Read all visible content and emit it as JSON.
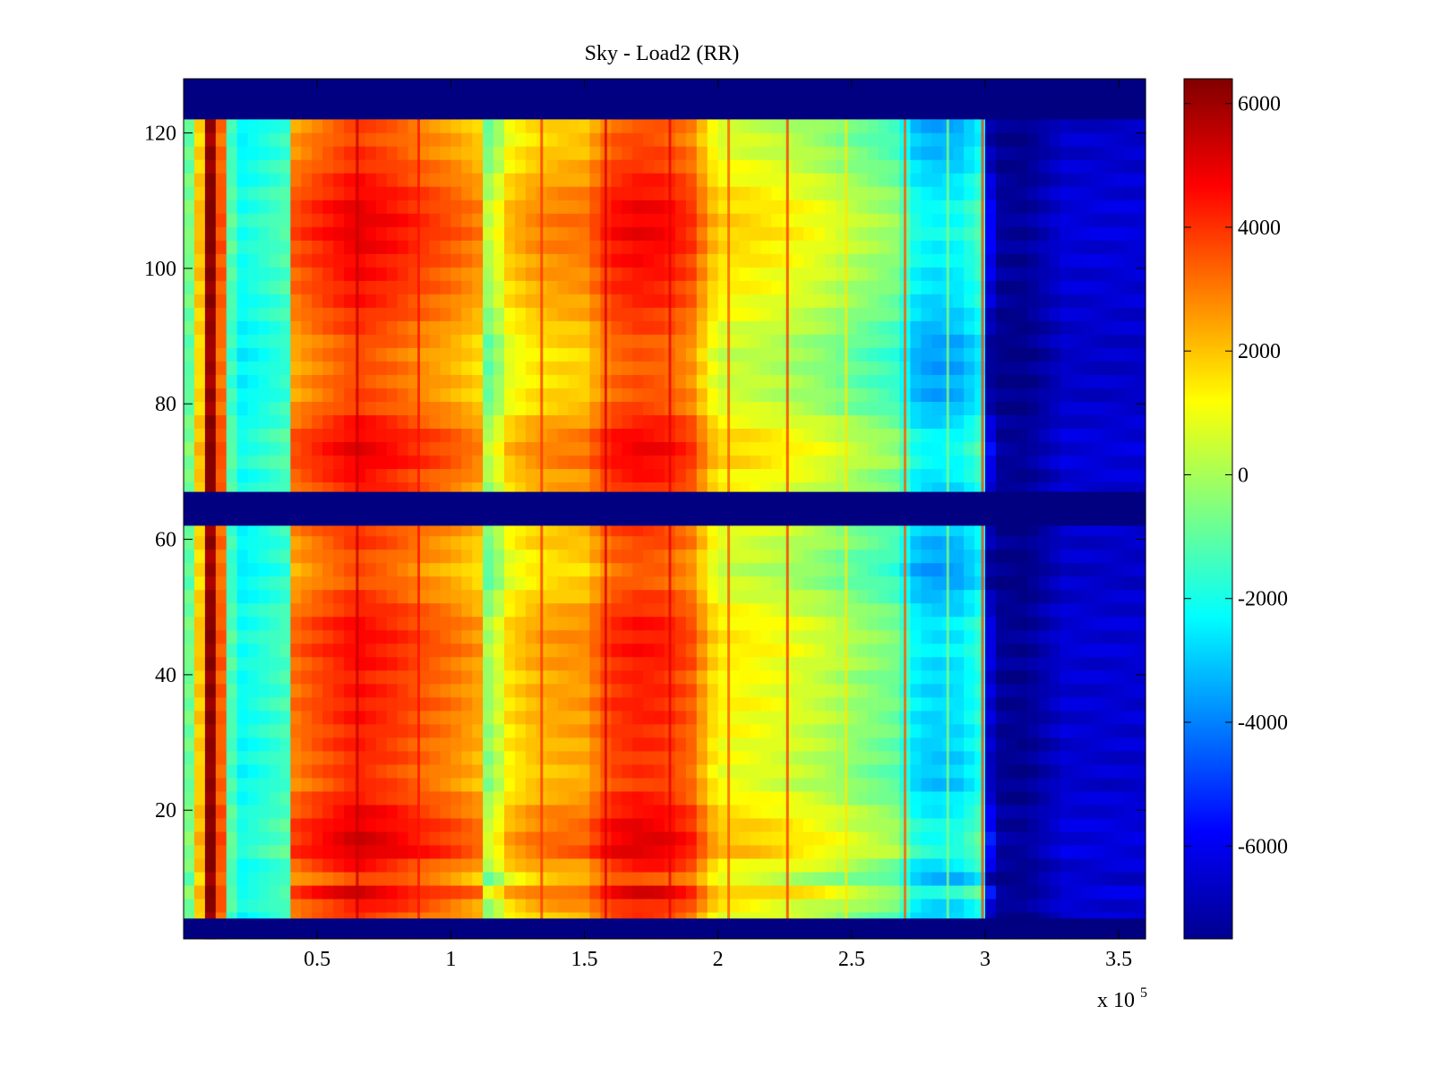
{
  "chart_data": {
    "type": "heatmap",
    "title": "Sky - Load2 (RR)",
    "xlabel": "",
    "ylabel": "",
    "x_exponent_label": "x 10",
    "x_exponent": "5",
    "xlim": [
      0,
      3.6
    ],
    "ylim": [
      1,
      128
    ],
    "xticks": [
      0.5,
      1,
      1.5,
      2,
      2.5,
      3,
      3.5
    ],
    "xtick_labels": [
      "0.5",
      "1",
      "1.5",
      "2",
      "2.5",
      "3",
      "3.5"
    ],
    "yticks": [
      20,
      40,
      60,
      80,
      100,
      120
    ],
    "ytick_labels": [
      "20",
      "40",
      "60",
      "80",
      "100",
      "120"
    ],
    "colorbar": {
      "colormap": "jet",
      "range": [
        -7500,
        6400
      ],
      "ticks": [
        6000,
        4000,
        2000,
        0,
        -2000,
        -4000,
        -6000
      ],
      "tick_labels": [
        "6000",
        "4000",
        "2000",
        "0",
        "-2000",
        "-4000",
        "-6000"
      ]
    },
    "masked_rows": [
      {
        "from": 1,
        "to": 4,
        "value": -7500
      },
      {
        "from": 62,
        "to": 67,
        "value": -7500
      },
      {
        "from": 122,
        "to": 128,
        "value": -7500
      }
    ],
    "column_profile": {
      "x": [
        0.0,
        0.05,
        0.08,
        0.1,
        0.13,
        0.16,
        0.2,
        0.3,
        0.4,
        0.42,
        0.5,
        0.65,
        0.8,
        0.9,
        1.0,
        1.1,
        1.15,
        1.2,
        1.3,
        1.4,
        1.5,
        1.6,
        1.7,
        1.8,
        1.9,
        2.0,
        2.1,
        2.2,
        2.3,
        2.4,
        2.5,
        2.6,
        2.68,
        2.72,
        2.8,
        2.9,
        2.98,
        3.02,
        3.05,
        3.15,
        3.3,
        3.6
      ],
      "values": [
        -1500,
        -200,
        5500,
        6000,
        5000,
        -500,
        -2500,
        -2000,
        -1500,
        2500,
        3000,
        3800,
        3300,
        2800,
        2400,
        1800,
        -1500,
        800,
        1500,
        1800,
        1900,
        3300,
        3600,
        3500,
        2800,
        600,
        500,
        300,
        0,
        -300,
        -800,
        -1200,
        -1500,
        -3000,
        -3500,
        -3300,
        -2500,
        -7000,
        -7300,
        -7400,
        -6500,
        -6500
      ]
    },
    "row_modulation": {
      "y": [
        5,
        8,
        10,
        14,
        19,
        24,
        30,
        36,
        40,
        43,
        48,
        55,
        60,
        70,
        72,
        76,
        80,
        88,
        95,
        100,
        106,
        110,
        116,
        120
      ],
      "values": [
        300,
        1500,
        0,
        1600,
        1200,
        300,
        500,
        700,
        600,
        900,
        800,
        -300,
        200,
        800,
        1300,
        1000,
        0,
        -200,
        600,
        900,
        1300,
        1100,
        300,
        0
      ]
    },
    "vertical_streaks": [
      {
        "x": 0.65,
        "value": 5500
      },
      {
        "x": 0.88,
        "value": 4500
      },
      {
        "x": 1.34,
        "value": 4000
      },
      {
        "x": 1.58,
        "value": 5200
      },
      {
        "x": 1.82,
        "value": 5000
      },
      {
        "x": 2.04,
        "value": 3500
      },
      {
        "x": 2.26,
        "value": 4000
      },
      {
        "x": 2.48,
        "value": 1500
      },
      {
        "x": 2.7,
        "value": 3500
      },
      {
        "x": 2.86,
        "value": -500
      },
      {
        "x": 2.99,
        "value": 3800
      }
    ]
  }
}
